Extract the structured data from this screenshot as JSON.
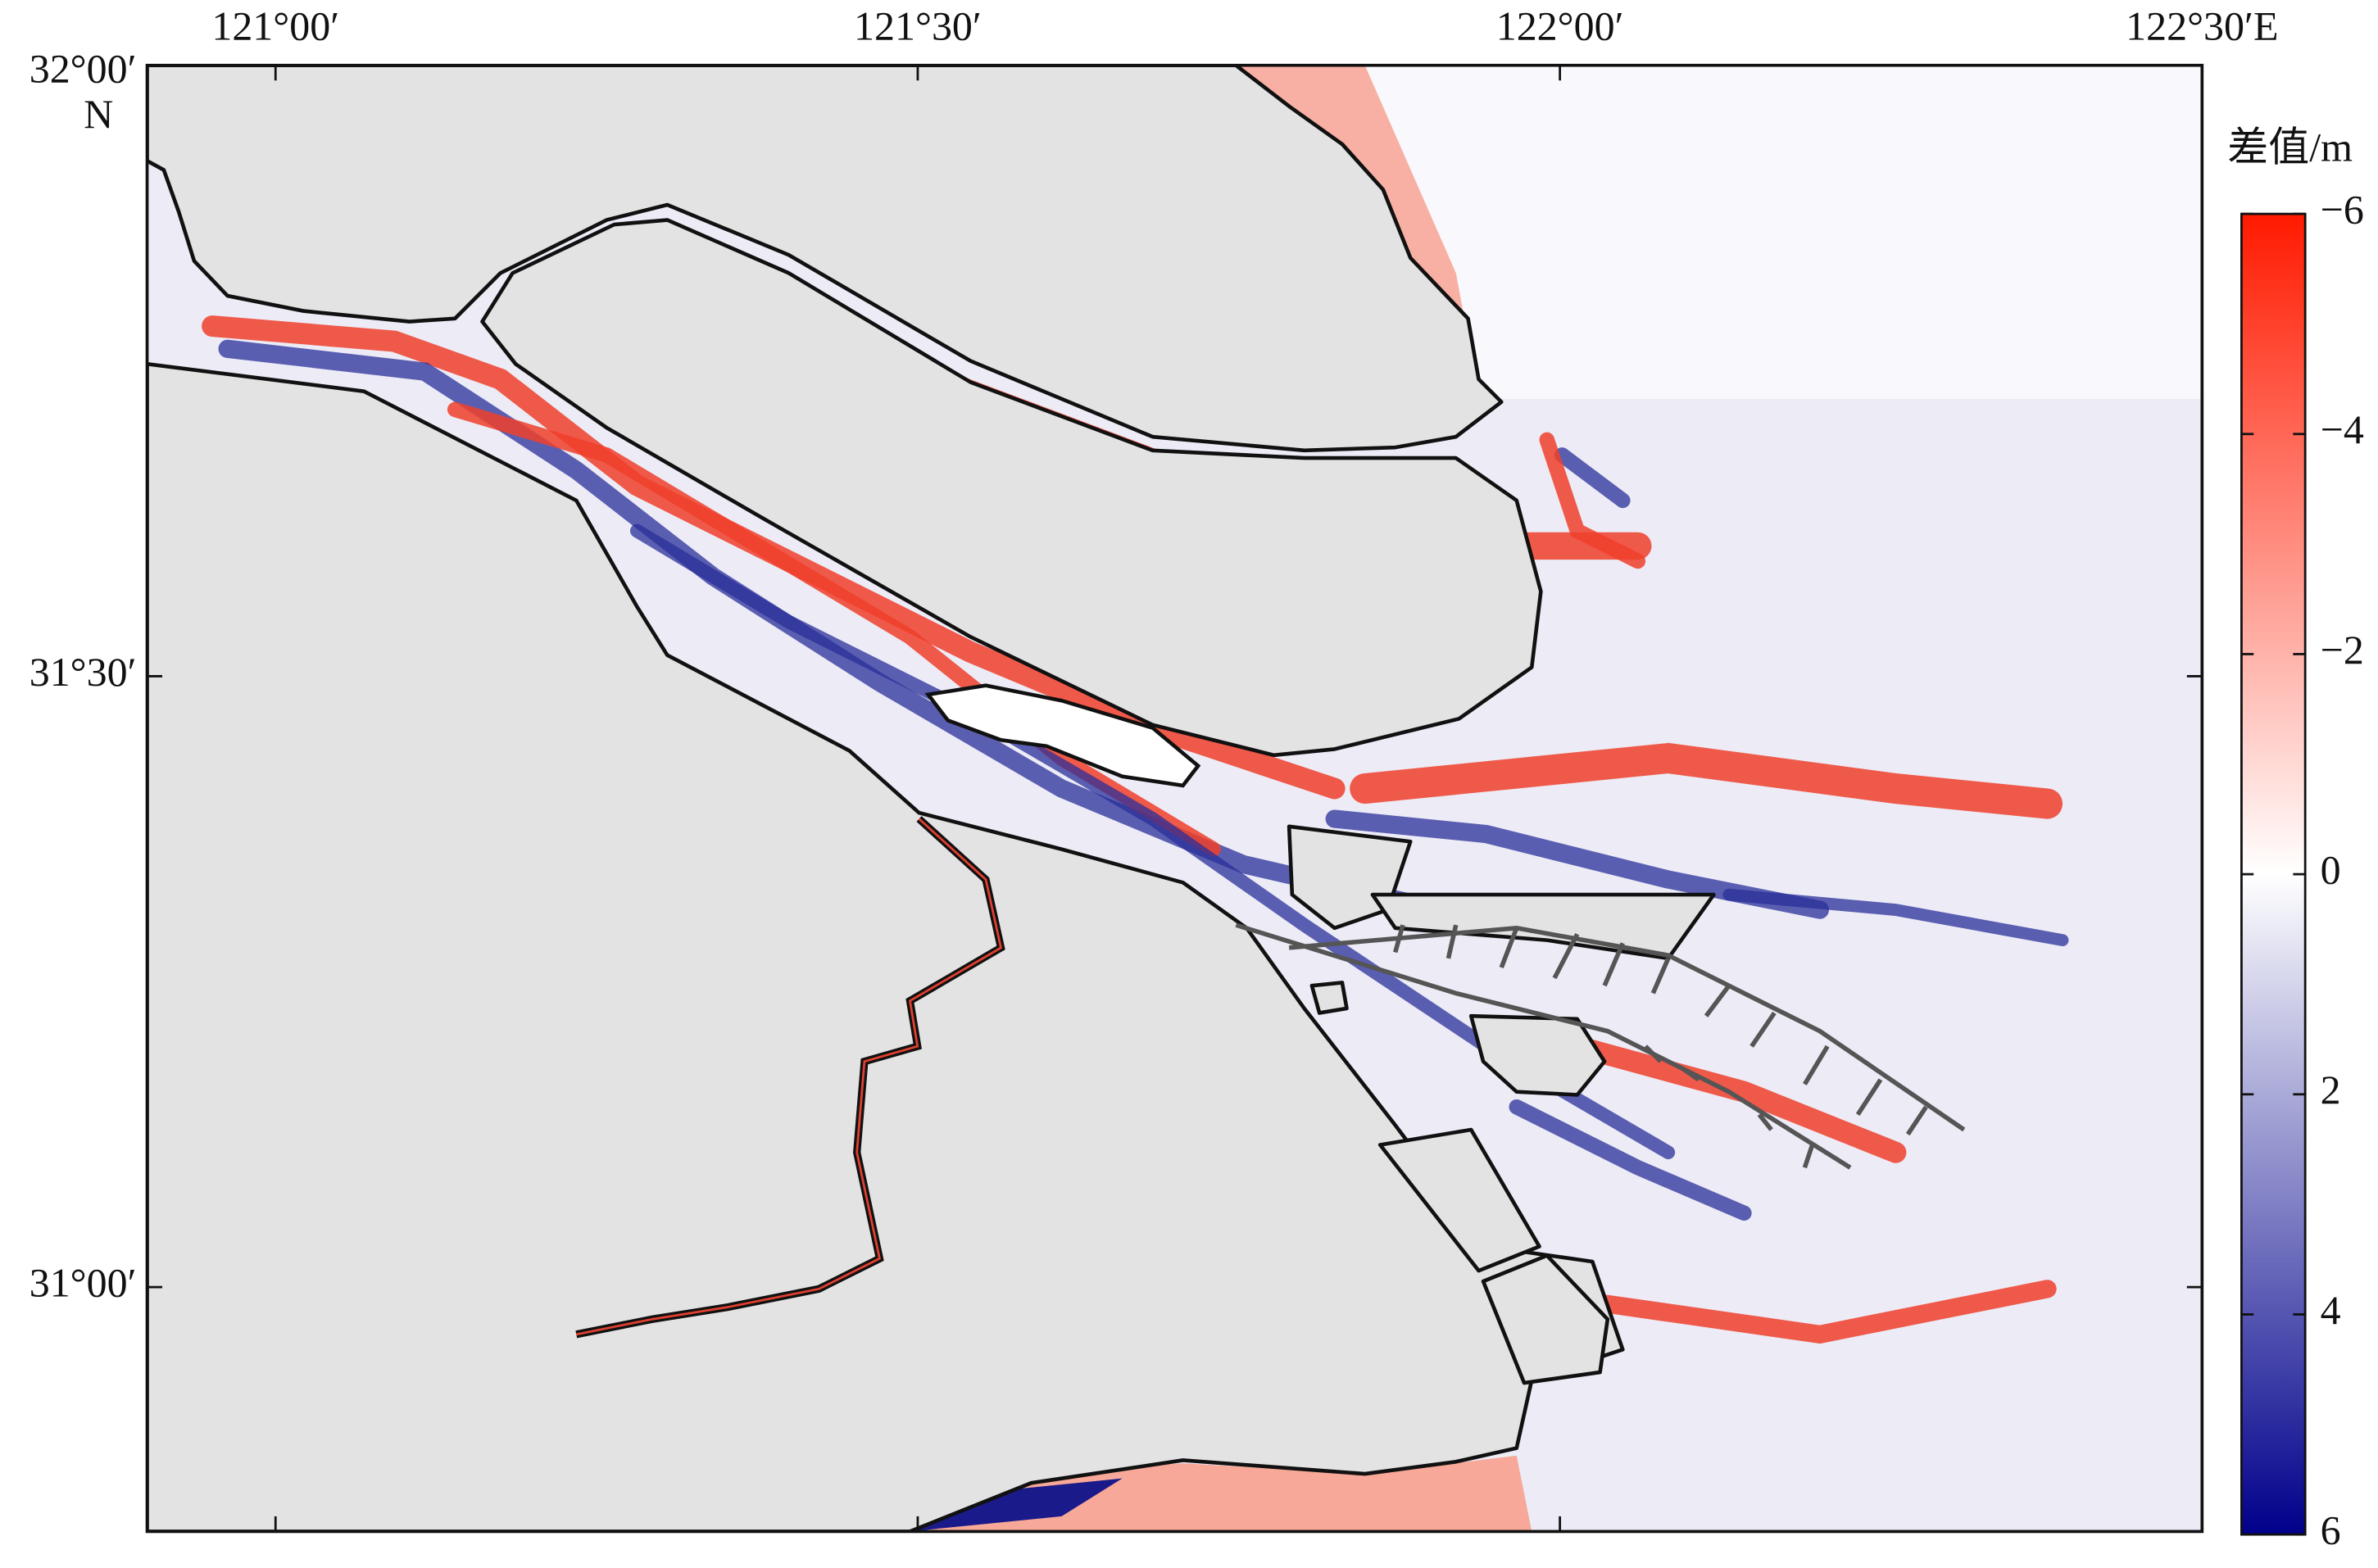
{
  "map": {
    "xlim": [
      120.9,
      122.5
    ],
    "ylim": [
      30.8,
      32.0
    ],
    "lon_ticks": [
      {
        "value": 121,
        "label": "121°00′"
      },
      {
        "value": 121.5,
        "label": "121°30′"
      },
      {
        "value": 122,
        "label": "122°00′"
      },
      {
        "value": 122.5,
        "label": "122°30′E"
      }
    ],
    "lat_ticks": [
      {
        "value": 32,
        "label": "32°00′"
      },
      {
        "value": 31.5,
        "label": "31°30′"
      },
      {
        "value": 31,
        "label": "31°00′"
      }
    ],
    "lat_hemisphere": "N",
    "colorbar": {
      "title": "差值/m",
      "range": [
        -6,
        6
      ],
      "colors": [
        "#ff1a00",
        "#ffffff",
        "#00008b"
      ],
      "ticks": [
        {
          "value": -6,
          "label": "−6"
        },
        {
          "value": -4,
          "label": "−4"
        },
        {
          "value": -2,
          "label": "−2"
        },
        0,
        2,
        4,
        6
      ]
    }
  }
}
